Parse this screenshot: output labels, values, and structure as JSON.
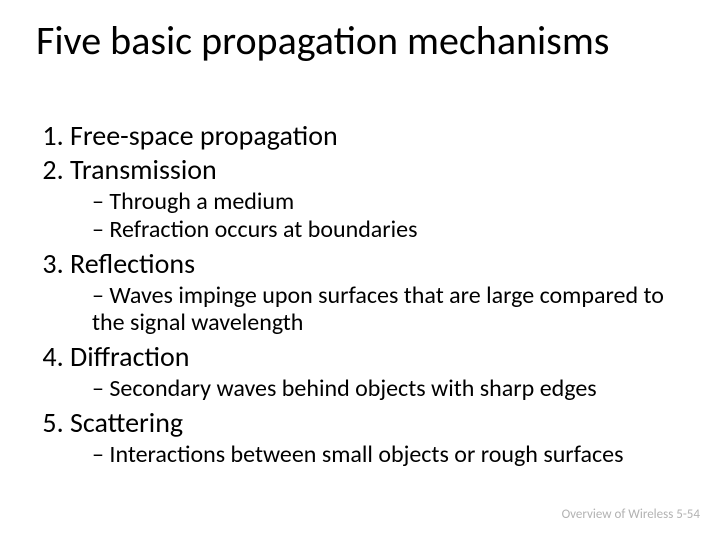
{
  "title_fontsize": 40,
  "body_fontsize": 28,
  "sub_fontsize": 24,
  "footer_fontsize": 13,
  "text_color": "#000000",
  "footer_color": "#b2b2b2",
  "background_color": "#ffffff",
  "font_family": "Calibri",
  "title": "Five basic propagation mechanisms",
  "items": [
    {
      "label": "Free-space propagation",
      "sub": []
    },
    {
      "label": "Transmission",
      "sub": [
        "Through a medium",
        "Refraction occurs at boundaries"
      ]
    },
    {
      "label": "Reflections",
      "sub": [
        "Waves impinge upon surfaces that are large compared to the signal wavelength"
      ]
    },
    {
      "label": "Diffraction",
      "sub": [
        "Secondary waves behind objects with sharp edges"
      ]
    },
    {
      "label": "Scattering",
      "sub": [
        "Interactions between small objects or rough surfaces"
      ]
    }
  ],
  "footer": "Overview of Wireless 5-54"
}
